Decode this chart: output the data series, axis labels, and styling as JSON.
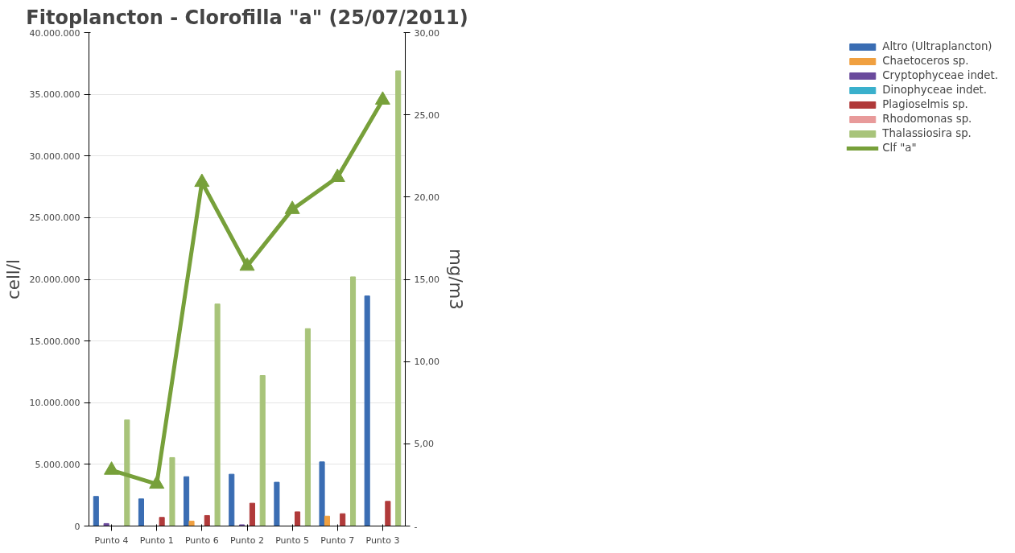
{
  "chart_data": {
    "type": "bar",
    "title": "Fitoplancton - Clorofilla \"a\" (25/07/2011)",
    "ylabel": "cell/l",
    "y2label": "mg/m3",
    "categories": [
      "Punto 4",
      "Punto 1",
      "Punto 6",
      "Punto 2",
      "Punto 5",
      "Punto 7",
      "Punto 3"
    ],
    "series": [
      {
        "name": "Altro (Ultraplancton)",
        "color": "#3a6db3",
        "values": [
          2400000,
          2200000,
          4000000,
          4200000,
          3550000,
          5200000,
          18650000
        ]
      },
      {
        "name": "Chaetoceros sp.",
        "color": "#f0a040",
        "values": [
          0,
          0,
          400000,
          0,
          0,
          800000,
          0
        ]
      },
      {
        "name": "Cryptophyceae indet.",
        "color": "#6a4a9c",
        "values": [
          200000,
          0,
          0,
          100000,
          0,
          0,
          0
        ]
      },
      {
        "name": "Dinophyceae indet.",
        "color": "#3ab0cc",
        "values": [
          0,
          0,
          0,
          0,
          0,
          0,
          0
        ]
      },
      {
        "name": "Plagioselmis sp.",
        "color": "#b03a3a",
        "values": [
          0,
          700000,
          850000,
          1850000,
          1150000,
          1000000,
          2000000
        ]
      },
      {
        "name": "Rhodomonas sp.",
        "color": "#e89a9a",
        "values": [
          0,
          0,
          0,
          0,
          0,
          0,
          0
        ]
      },
      {
        "name": "Thalassiosira sp.",
        "color": "#a8c47a",
        "values": [
          8600000,
          5550000,
          18000000,
          12200000,
          16000000,
          20200000,
          36900000
        ]
      },
      {
        "name": "Clf \"a\"",
        "type": "line",
        "axis": "y2",
        "color": "#77a03a",
        "marker": "triangle",
        "values": [
          3.4,
          2.55,
          20.9,
          15.8,
          19.25,
          21.2,
          25.9
        ]
      }
    ],
    "ylim": [
      0,
      40000000
    ],
    "yticks": [
      {
        "value": 0,
        "label": "0"
      },
      {
        "value": 5000000,
        "label": "5.000.000"
      },
      {
        "value": 10000000,
        "label": "10.000.000"
      },
      {
        "value": 15000000,
        "label": "15.000.000"
      },
      {
        "value": 20000000,
        "label": "20.000.000"
      },
      {
        "value": 25000000,
        "label": "25.000.000"
      },
      {
        "value": 30000000,
        "label": "30.000.000"
      },
      {
        "value": 35000000,
        "label": "35.000.000"
      },
      {
        "value": 40000000,
        "label": "40.000.000"
      }
    ],
    "y2lim": [
      0,
      30
    ],
    "y2ticks": [
      {
        "value": 0,
        "label": "-"
      },
      {
        "value": 5,
        "label": "5,00"
      },
      {
        "value": 10,
        "label": "10,00"
      },
      {
        "value": 15,
        "label": "15,00"
      },
      {
        "value": 20,
        "label": "20,00"
      },
      {
        "value": 25,
        "label": "25,00"
      },
      {
        "value": 30,
        "label": "30,00"
      }
    ],
    "grid": "y",
    "legend": "right"
  }
}
